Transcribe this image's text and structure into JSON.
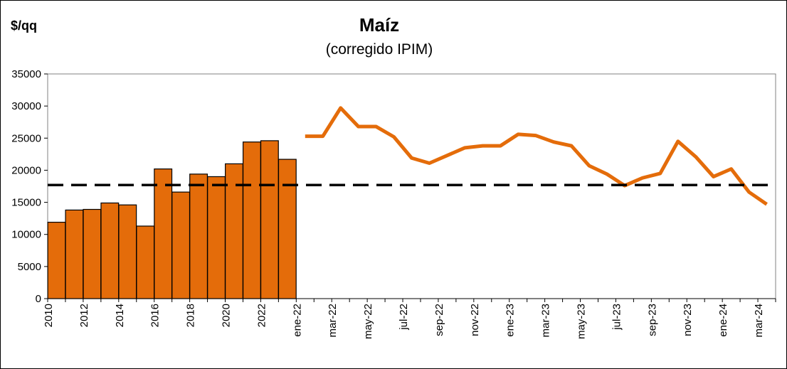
{
  "chart_data": {
    "type": "bar+line",
    "title": "Maíz",
    "subtitle": "(corregido IPIM)",
    "ylabel": "$/qq",
    "ylim": [
      0,
      35000
    ],
    "yticks": [
      0,
      5000,
      10000,
      15000,
      20000,
      25000,
      30000,
      35000
    ],
    "reference_line": 17700,
    "colors": {
      "bar": "#E46C0A",
      "line": "#E46C0A",
      "reference": "#000000"
    },
    "bars": {
      "categories": [
        "2010",
        "2011",
        "2012",
        "2013",
        "2014",
        "2015",
        "2016",
        "2017",
        "2018",
        "2019",
        "2020",
        "2021",
        "2022",
        "2023"
      ],
      "tick_labels": [
        "2010",
        "",
        "2012",
        "",
        "2014",
        "",
        "2016",
        "",
        "2018",
        "",
        "2020",
        "",
        "2022",
        ""
      ],
      "values": [
        11900,
        13800,
        13900,
        14900,
        14600,
        11300,
        20200,
        16600,
        19400,
        19000,
        21000,
        24400,
        24600,
        21700
      ]
    },
    "line": {
      "categories": [
        "ene-22",
        "feb-22",
        "mar-22",
        "abr-22",
        "may-22",
        "jun-22",
        "jul-22",
        "ago-22",
        "sep-22",
        "oct-22",
        "nov-22",
        "dic-22",
        "ene-23",
        "feb-23",
        "mar-23",
        "abr-23",
        "may-23",
        "jun-23",
        "jul-23",
        "ago-23",
        "sep-23",
        "oct-23",
        "nov-23",
        "dic-23",
        "ene-24",
        "feb-24",
        "mar-24"
      ],
      "tick_labels": [
        "ene-22",
        "",
        "mar-22",
        "",
        "may-22",
        "",
        "jul-22",
        "",
        "sep-22",
        "",
        "nov-22",
        "",
        "ene-23",
        "",
        "mar-23",
        "",
        "may-23",
        "",
        "jul-23",
        "",
        "sep-23",
        "",
        "nov-23",
        "",
        "ene-24",
        "",
        "mar-24"
      ],
      "values": [
        25300,
        25300,
        29700,
        26800,
        26800,
        25200,
        21900,
        21100,
        22300,
        23500,
        23800,
        23800,
        25600,
        25400,
        24400,
        23800,
        20700,
        19400,
        17600,
        18800,
        19500,
        24500,
        22100,
        19000,
        20200,
        16600,
        14700
      ]
    }
  }
}
